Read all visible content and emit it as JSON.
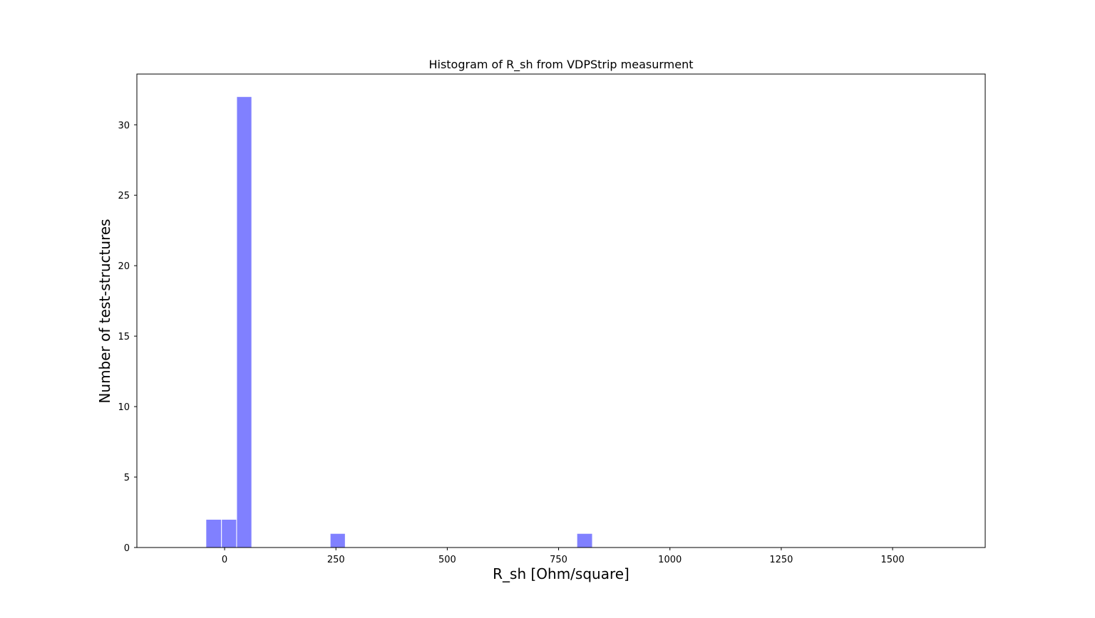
{
  "chart_data": {
    "type": "bar",
    "title": "Histogram of R_sh from VDPStrip measurment",
    "xlabel": "R_sh [Ohm/square]",
    "ylabel": "Number of test-structures",
    "xlim": [
      -197,
      1708
    ],
    "ylim": [
      0,
      33.6
    ],
    "grid": false,
    "bar_color": "#8080ff",
    "bar_edge_color": "#ffffff",
    "axis_color": "#000000",
    "x_ticks": [
      {
        "value": 0,
        "label": "0"
      },
      {
        "value": 250,
        "label": "250"
      },
      {
        "value": 500,
        "label": "500"
      },
      {
        "value": 750,
        "label": "750"
      },
      {
        "value": 1000,
        "label": "1000"
      },
      {
        "value": 1250,
        "label": "1250"
      },
      {
        "value": 1500,
        "label": "1500"
      }
    ],
    "y_ticks": [
      {
        "value": 0,
        "label": "0"
      },
      {
        "value": 5,
        "label": "5"
      },
      {
        "value": 10,
        "label": "10"
      },
      {
        "value": 15,
        "label": "15"
      },
      {
        "value": 20,
        "label": "20"
      },
      {
        "value": 25,
        "label": "25"
      },
      {
        "value": 30,
        "label": "30"
      }
    ],
    "bins": [
      {
        "x0": -42,
        "x1": -7,
        "count": 2
      },
      {
        "x0": -7,
        "x1": 27,
        "count": 2
      },
      {
        "x0": 27,
        "x1": 61,
        "count": 32
      },
      {
        "x0": 237,
        "x1": 271,
        "count": 1
      },
      {
        "x0": 791,
        "x1": 826,
        "count": 1
      }
    ]
  }
}
